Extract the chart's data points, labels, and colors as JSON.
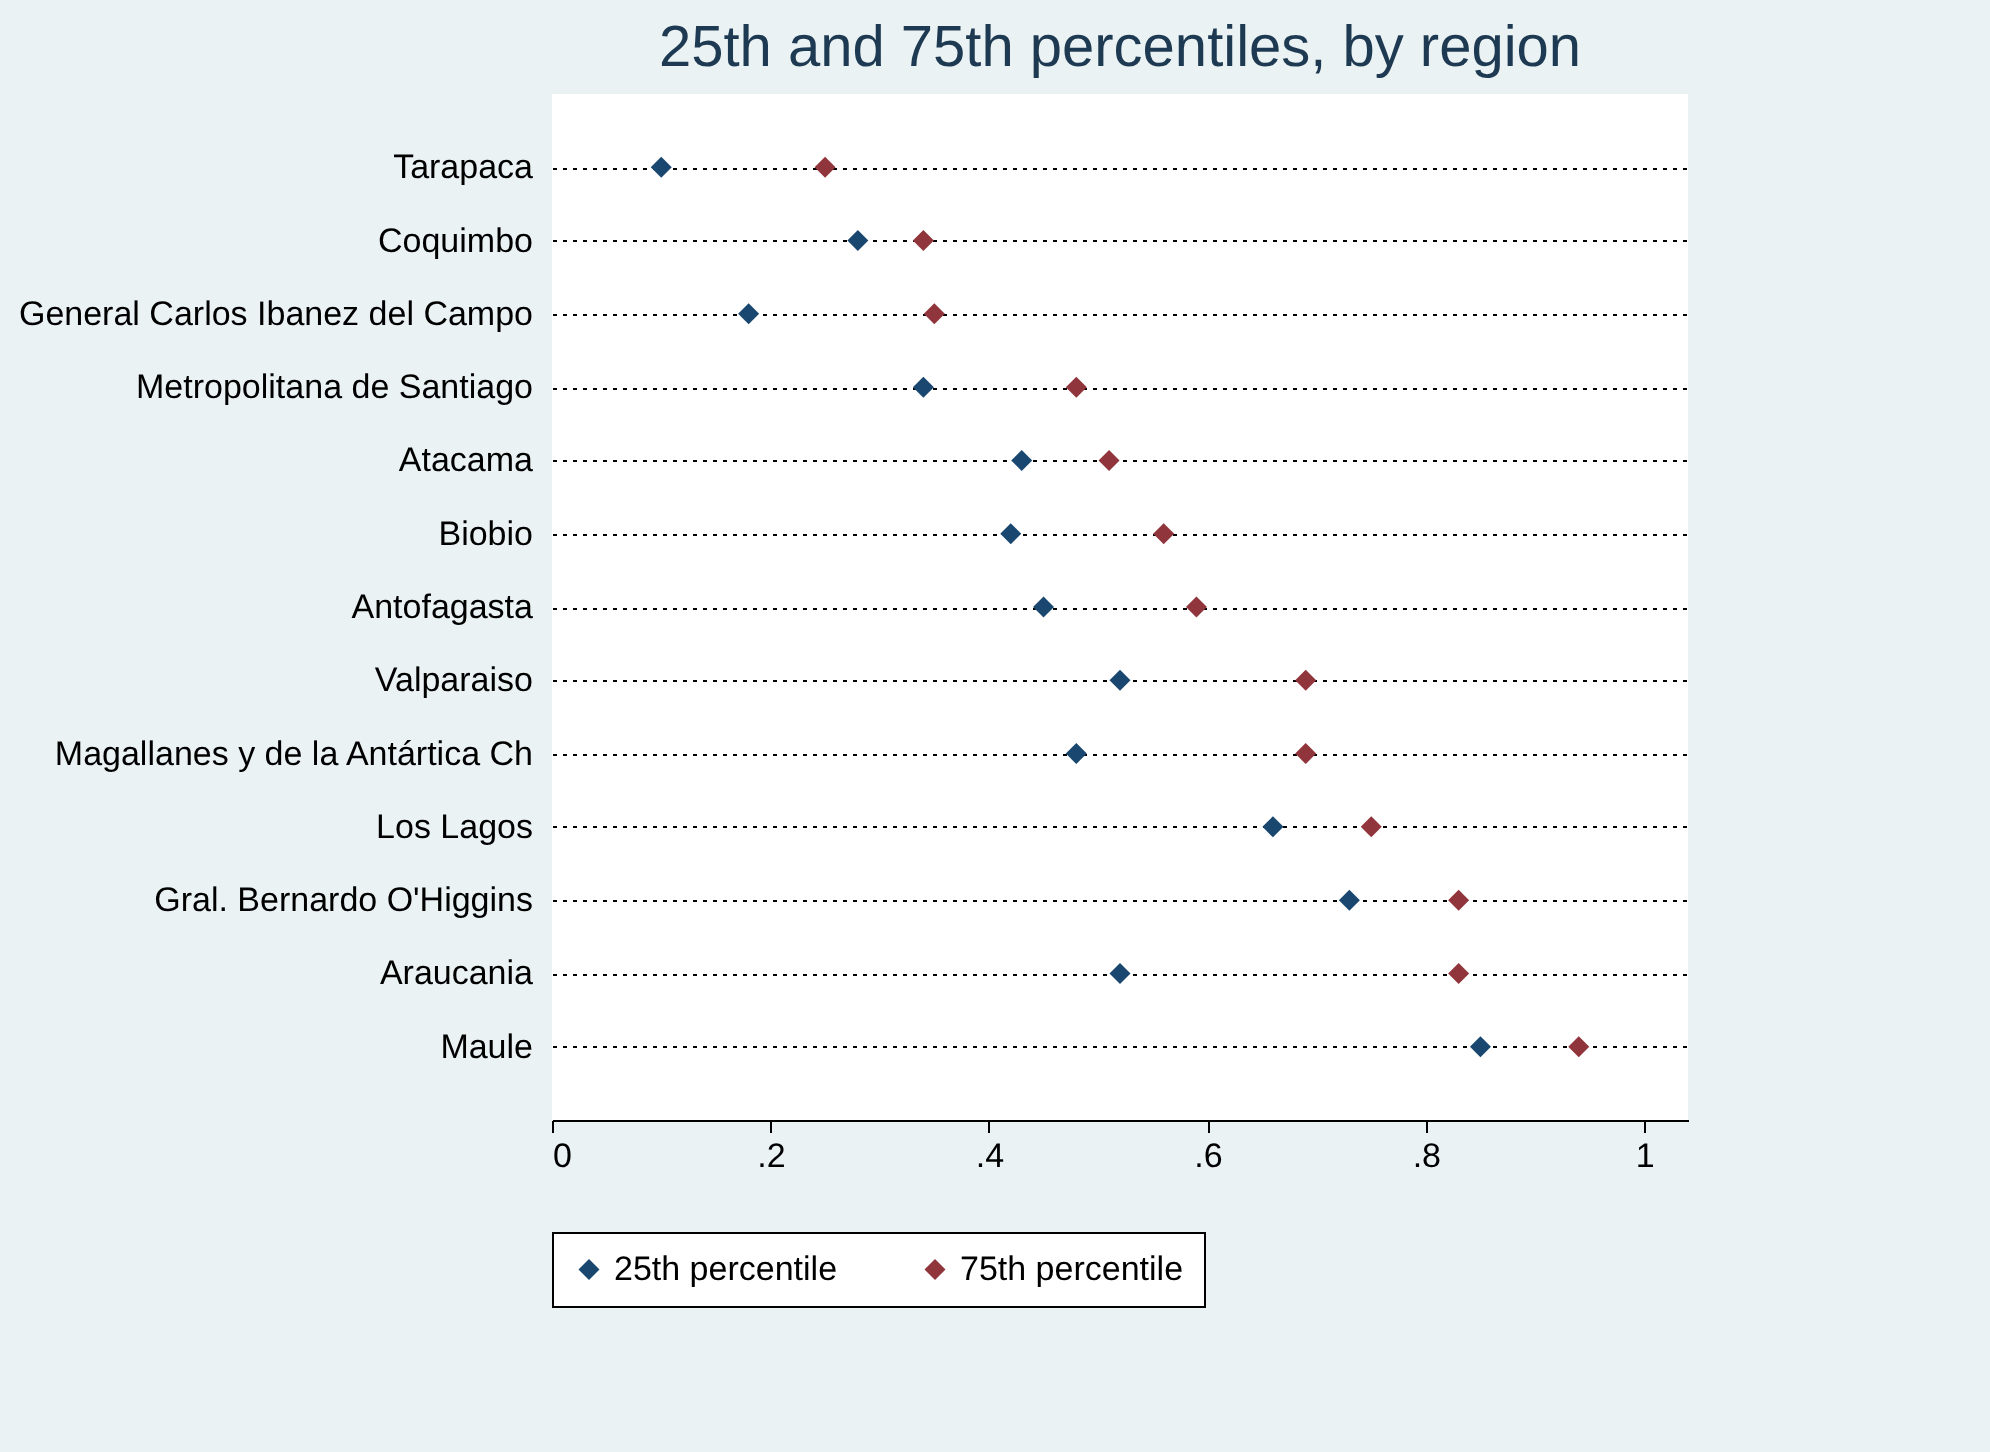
{
  "chart_data": {
    "type": "scatter",
    "orientation": "horizontal",
    "title": "25th and 75th percentiles, by region",
    "categories": [
      "Tarapaca",
      "Coquimbo",
      "General Carlos Ibanez del Campo",
      "Metropolitana de Santiago",
      "Atacama",
      "Biobio",
      "Antofagasta",
      "Valparaiso",
      "Magallanes y de la Antártica Ch",
      "Los Lagos",
      "Gral. Bernardo O'Higgins",
      "Araucania",
      "Maule"
    ],
    "series": [
      {
        "name": "25th percentile",
        "color": "#1a476f",
        "values": [
          0.1,
          0.28,
          0.18,
          0.34,
          0.43,
          0.42,
          0.45,
          0.52,
          0.48,
          0.66,
          0.73,
          0.52,
          0.85
        ]
      },
      {
        "name": "75th percentile",
        "color": "#90353b",
        "values": [
          0.25,
          0.34,
          0.35,
          0.48,
          0.51,
          0.56,
          0.59,
          0.69,
          0.69,
          0.75,
          0.83,
          0.83,
          0.94
        ]
      }
    ],
    "xlim": [
      0,
      1.04
    ],
    "xticks": [
      0,
      {
        "value": 0.2,
        "label": ".2"
      },
      {
        "value": 0.4,
        "label": ".4"
      },
      {
        "value": 0.6,
        "label": ".6"
      },
      {
        "value": 0.8,
        "label": ".8"
      },
      1
    ],
    "grid": "y",
    "legend": "bottom",
    "marker": "diamond"
  }
}
